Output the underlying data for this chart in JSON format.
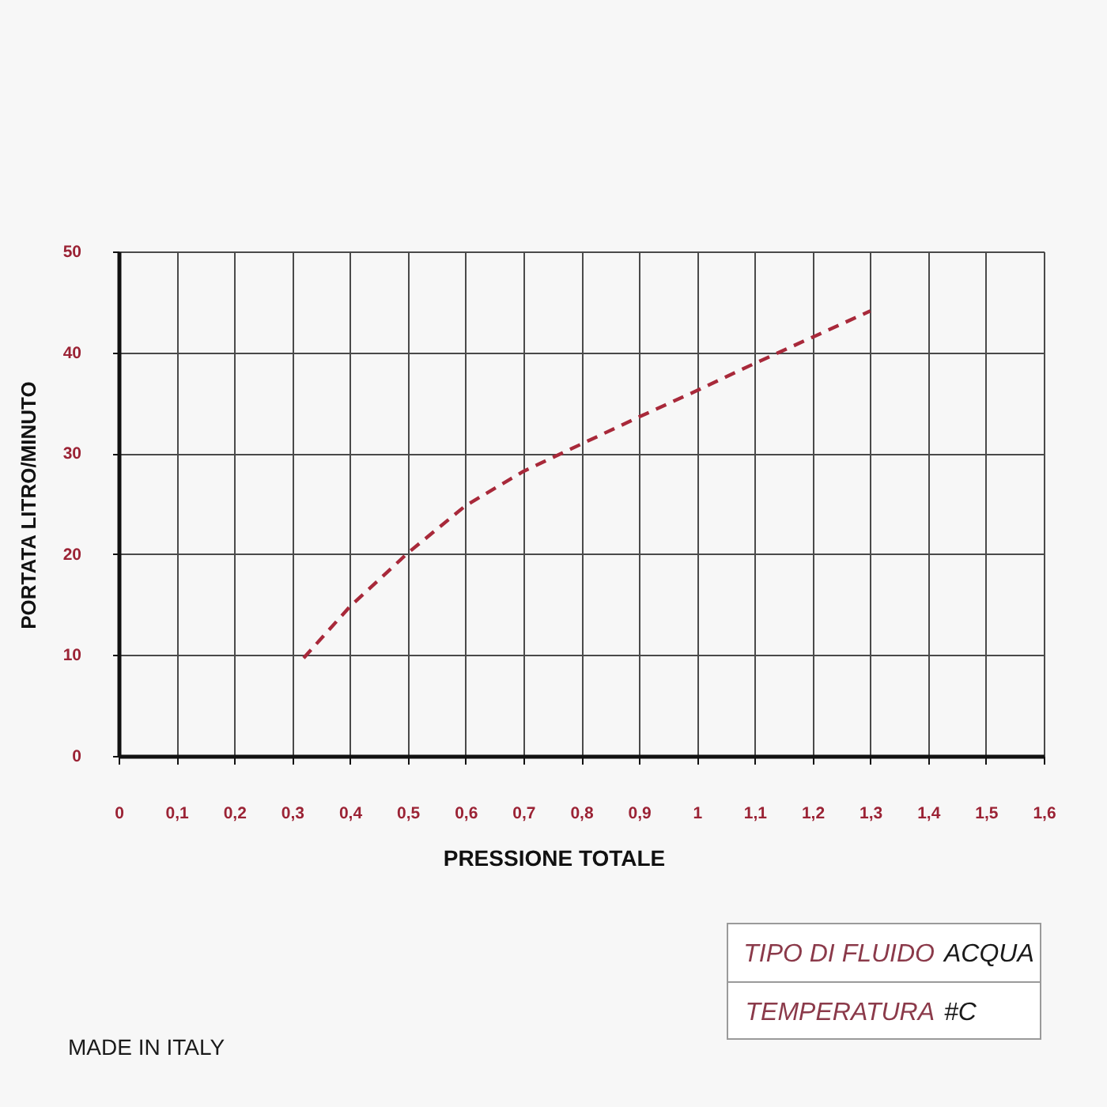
{
  "chart_data": {
    "type": "line",
    "xlabel": "PRESSIONE TOTALE",
    "ylabel": "PORTATA LITRO/MINUTO",
    "x": [
      0.32,
      0.4,
      0.5,
      0.6,
      0.7,
      0.8,
      0.9,
      1.0,
      1.1,
      1.2,
      1.3
    ],
    "series": [
      {
        "color": "#a8293a",
        "values": [
          9.7,
          14.8,
          20.1,
          24.8,
          28.2,
          30.9,
          33.6,
          36.2,
          38.9,
          41.5,
          44.1
        ]
      }
    ],
    "xlim": [
      0,
      1.6
    ],
    "ylim": [
      0,
      50
    ],
    "xticks": [
      0,
      {
        "value": 0.1,
        "label": "0,1"
      },
      {
        "value": 0.2,
        "label": "0,2"
      },
      {
        "value": 0.3,
        "label": "0,3"
      },
      {
        "value": 0.4,
        "label": "0,4"
      },
      {
        "value": 0.5,
        "label": "0,5"
      },
      {
        "value": 0.6,
        "label": "0,6"
      },
      {
        "value": 0.7,
        "label": "0,7"
      },
      {
        "value": 0.8,
        "label": "0,8"
      },
      {
        "value": 0.9,
        "label": "0,9"
      },
      1,
      {
        "value": 1.1,
        "label": "1,1"
      },
      {
        "value": 1.2,
        "label": "1,2"
      },
      {
        "value": 1.3,
        "label": "1,3"
      },
      {
        "value": 1.4,
        "label": "1,4"
      },
      {
        "value": 1.5,
        "label": "1,5"
      },
      {
        "value": 1.6,
        "label": "1,6"
      }
    ],
    "yticks": [
      0,
      10,
      20,
      30,
      40,
      50
    ],
    "grid": true,
    "line_style": "dashed",
    "annotations": [
      "TIPO DI FLUIDO",
      "ACQUA",
      "TEMPERATURA",
      "#C",
      "MADE IN ITALY"
    ]
  }
}
